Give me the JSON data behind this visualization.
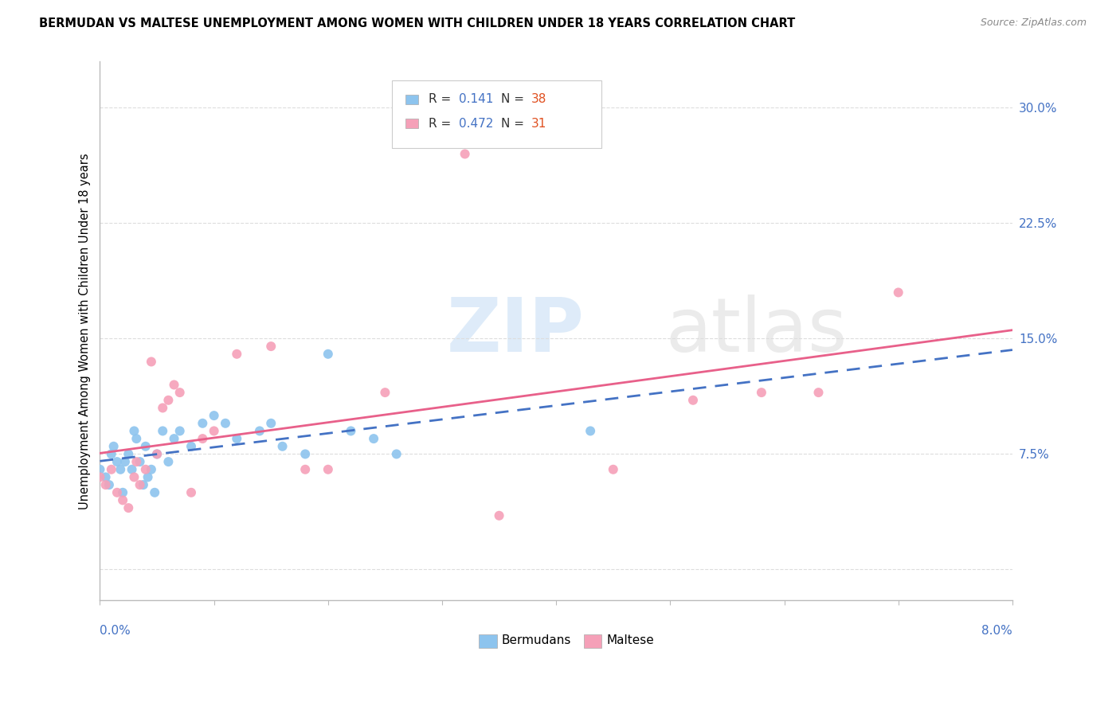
{
  "title": "BERMUDAN VS MALTESE UNEMPLOYMENT AMONG WOMEN WITH CHILDREN UNDER 18 YEARS CORRELATION CHART",
  "source": "Source: ZipAtlas.com",
  "ylabel": "Unemployment Among Women with Children Under 18 years",
  "xlim": [
    0.0,
    8.0
  ],
  "ylim": [
    -2.0,
    33.0
  ],
  "yticks": [
    0.0,
    7.5,
    15.0,
    22.5,
    30.0
  ],
  "ytick_labels": [
    "",
    "7.5%",
    "15.0%",
    "22.5%",
    "30.0%"
  ],
  "legend_r_bermudans": "0.141",
  "legend_n_bermudans": "38",
  "legend_r_maltese": "0.472",
  "legend_n_maltese": "31",
  "bermudans_color": "#8DC4EE",
  "maltese_color": "#F5A0B8",
  "bermudans_line_color": "#4472C4",
  "maltese_line_color": "#E8608A",
  "bermudans_x": [
    0.0,
    0.05,
    0.08,
    0.1,
    0.12,
    0.15,
    0.18,
    0.2,
    0.22,
    0.25,
    0.28,
    0.3,
    0.32,
    0.35,
    0.38,
    0.4,
    0.42,
    0.45,
    0.48,
    0.5,
    0.55,
    0.6,
    0.65,
    0.7,
    0.8,
    0.9,
    1.0,
    1.1,
    1.2,
    1.4,
    1.5,
    1.6,
    1.8,
    2.0,
    2.2,
    2.4,
    2.6,
    4.3
  ],
  "bermudans_y": [
    6.5,
    6.0,
    5.5,
    7.5,
    8.0,
    7.0,
    6.5,
    5.0,
    7.0,
    7.5,
    6.5,
    9.0,
    8.5,
    7.0,
    5.5,
    8.0,
    6.0,
    6.5,
    5.0,
    7.5,
    9.0,
    7.0,
    8.5,
    9.0,
    8.0,
    9.5,
    10.0,
    9.5,
    8.5,
    9.0,
    9.5,
    8.0,
    7.5,
    14.0,
    9.0,
    8.5,
    7.5,
    9.0
  ],
  "maltese_x": [
    0.0,
    0.05,
    0.1,
    0.15,
    0.2,
    0.25,
    0.3,
    0.32,
    0.35,
    0.4,
    0.45,
    0.5,
    0.55,
    0.6,
    0.65,
    0.7,
    0.8,
    0.9,
    1.0,
    1.2,
    1.5,
    1.8,
    2.0,
    2.5,
    3.2,
    3.5,
    4.5,
    5.2,
    5.8,
    6.3,
    7.0
  ],
  "maltese_y": [
    6.0,
    5.5,
    6.5,
    5.0,
    4.5,
    4.0,
    6.0,
    7.0,
    5.5,
    6.5,
    13.5,
    7.5,
    10.5,
    11.0,
    12.0,
    11.5,
    5.0,
    8.5,
    9.0,
    14.0,
    14.5,
    6.5,
    6.5,
    11.5,
    27.0,
    3.5,
    6.5,
    11.0,
    11.5,
    11.5,
    18.0
  ],
  "grid_color": "#DDDDDD",
  "background_color": "#FFFFFF",
  "tick_color": "#AAAAAA"
}
